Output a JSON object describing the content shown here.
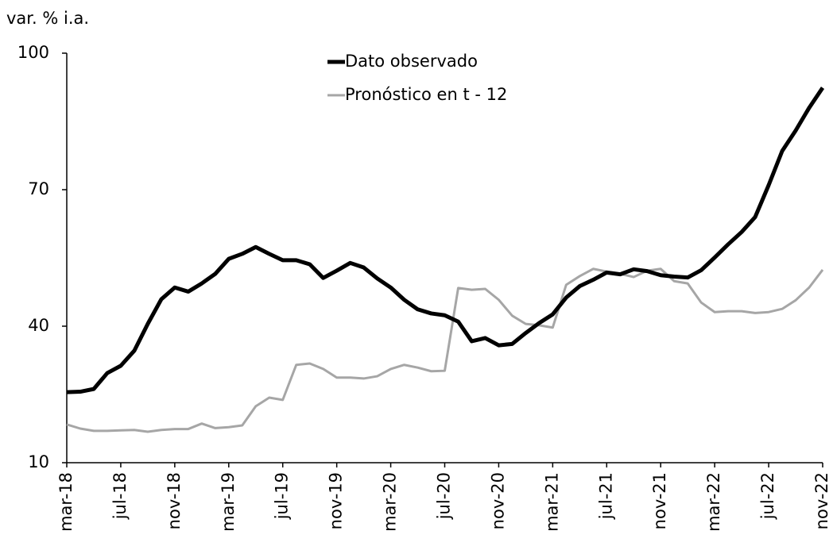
{
  "chart_data": {
    "type": "line",
    "y_axis_label": "var. % i.a.",
    "categories": [
      "mar-18",
      null,
      null,
      null,
      "jul-18",
      null,
      null,
      null,
      "nov-18",
      null,
      null,
      null,
      "mar-19",
      null,
      null,
      null,
      "jul-19",
      null,
      null,
      null,
      "nov-19",
      null,
      null,
      null,
      "mar-20",
      null,
      null,
      null,
      "jul-20",
      null,
      null,
      null,
      "nov-20",
      null,
      null,
      null,
      "mar-21",
      null,
      null,
      null,
      "jul-21",
      null,
      null,
      null,
      "nov-21",
      null,
      null,
      null,
      "mar-22",
      null,
      null,
      null,
      "jul-22",
      null,
      null,
      null,
      "nov-22"
    ],
    "series": [
      {
        "name": "Dato observado",
        "color": "#000000",
        "width": 5,
        "values": [
          25.5,
          25.6,
          26.2,
          29.7,
          31.3,
          34.6,
          40.5,
          45.9,
          48.5,
          47.6,
          49.4,
          51.5,
          54.8,
          55.9,
          57.4,
          55.9,
          54.5,
          54.5,
          53.6,
          50.6,
          52.2,
          53.9,
          52.9,
          50.5,
          48.5,
          45.8,
          43.7,
          42.8,
          42.4,
          41.0,
          36.7,
          37.4,
          35.8,
          36.1,
          38.5,
          40.7,
          42.6,
          46.3,
          48.8,
          50.2,
          51.8,
          51.4,
          52.5,
          52.1,
          51.2,
          50.9,
          50.7,
          52.3,
          55.1,
          58.0,
          60.7,
          64.0,
          71.0,
          78.5,
          83.0,
          88.0,
          92.4
        ]
      },
      {
        "name": "Pronóstico en t - 12",
        "color": "#a6a6a6",
        "width": 3,
        "values": [
          18.4,
          17.5,
          17.0,
          17.0,
          17.1,
          17.2,
          16.8,
          17.2,
          17.4,
          17.4,
          18.6,
          17.6,
          17.8,
          18.2,
          22.4,
          24.3,
          23.8,
          31.5,
          31.8,
          30.6,
          28.7,
          28.7,
          28.5,
          29.0,
          30.6,
          31.5,
          30.9,
          30.1,
          30.2,
          48.4,
          48.0,
          48.2,
          45.8,
          42.3,
          40.5,
          40.2,
          39.7,
          49.1,
          51.0,
          52.6,
          52.0,
          51.5,
          50.8,
          52.2,
          52.6,
          49.9,
          49.4,
          45.2,
          43.1,
          43.3,
          43.3,
          42.9,
          43.1,
          43.8,
          45.7,
          48.5,
          52.4
        ]
      }
    ],
    "ylim": [
      10,
      100
    ],
    "yticks": [
      10,
      40,
      70,
      100
    ],
    "grid": false,
    "legend": "top"
  }
}
